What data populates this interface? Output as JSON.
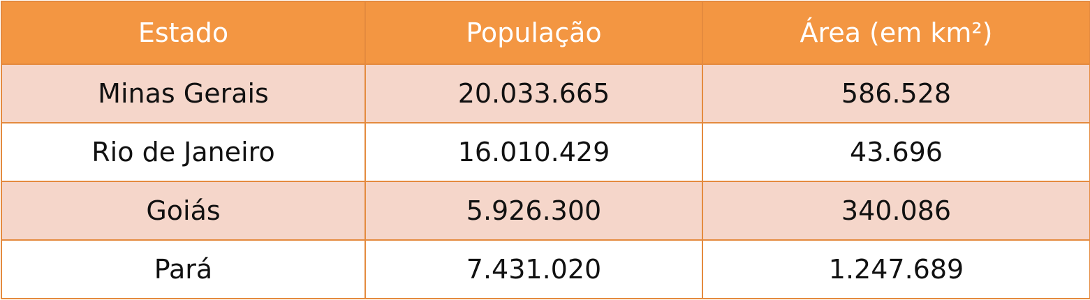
{
  "table": {
    "header": [
      "Estado",
      "População",
      "Área (em km²)"
    ],
    "rows": [
      [
        "Minas Gerais",
        "20.033.665",
        "586.528"
      ],
      [
        "Rio de Janeiro",
        "16.010.429",
        "43.696"
      ],
      [
        "Goiás",
        "5.926.300",
        "340.086"
      ],
      [
        "Pará",
        "7.431.020",
        "1.247.689"
      ]
    ]
  }
}
